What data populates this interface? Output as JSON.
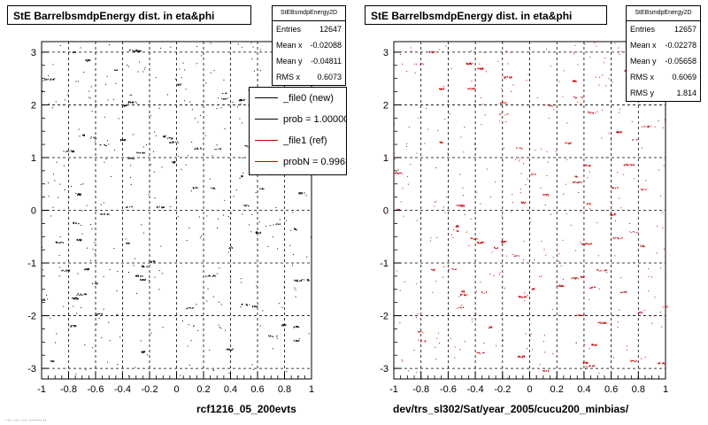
{
  "stamp_text": "... ... ... .........",
  "panels": [
    {
      "title": "StE BarrelbsmdpEnergy dist. in eta&phi",
      "x_caption": "rcf1216_05_200evts",
      "stats": {
        "name": "StEBsmdpEnergy2D",
        "rows": [
          {
            "label": "Entries",
            "value": "12647"
          },
          {
            "label": "Mean x",
            "value": "-0.02088"
          },
          {
            "label": "Mean y",
            "value": "-0.04811"
          },
          {
            "label": "RMS x",
            "value": "0.6073"
          }
        ]
      },
      "legend": [
        {
          "label": "_file0 (new)",
          "color": "#000000"
        },
        {
          "label": "prob = 1.000000",
          "color": "#000000"
        },
        {
          "label": "_file1 (ref)",
          "color": "#cc0000"
        },
        {
          "label": "probN = 0.996371",
          "color": "#cc0000"
        }
      ]
    },
    {
      "title": "StE BarrelbsmdpEnergy dist. in eta&phi",
      "x_caption": "dev/trs_sl302/Sat/year_2005/cucu200_minbias/",
      "stats": {
        "name": "StEBsmdpEnergy2D",
        "rows": [
          {
            "label": "Entries",
            "value": "12657"
          },
          {
            "label": "Mean x",
            "value": "-0.02278"
          },
          {
            "label": "Mean y",
            "value": "-0.05658"
          },
          {
            "label": "RMS x",
            "value": "0.6069"
          },
          {
            "label": "RMS y",
            "value": "1.814"
          }
        ]
      }
    }
  ],
  "chart_data": [
    {
      "type": "scatter",
      "title": "StE BarrelbsmdpEnergy dist. in eta&phi",
      "xlabel": "rcf1216_05_200evts",
      "ylabel": "",
      "xlim": [
        -1,
        1
      ],
      "ylim": [
        -3.2,
        3.2
      ],
      "xticks": [
        -1,
        -0.8,
        -0.6,
        -0.4,
        -0.2,
        0,
        0.2,
        0.4,
        0.6,
        0.8,
        1
      ],
      "yticks": [
        -3,
        -2,
        -1,
        0,
        1,
        2,
        3
      ],
      "grid": true,
      "marker_color": "#000000",
      "seed": 12647
    },
    {
      "type": "scatter",
      "title": "StE BarrelbsmdpEnergy dist. in eta&phi",
      "xlabel": "dev/trs_sl302/Sat/year_2005/cucu200_minbias/",
      "ylabel": "",
      "xlim": [
        -1,
        1
      ],
      "ylim": [
        -3.2,
        3.2
      ],
      "xticks": [
        -1,
        -0.8,
        -0.6,
        -0.4,
        -0.2,
        0,
        0.2,
        0.4,
        0.6,
        0.8,
        1
      ],
      "yticks": [
        -3,
        -2,
        -1,
        0,
        1,
        2,
        3
      ],
      "grid": true,
      "marker_color": "#cc0000",
      "seed": 12657
    }
  ]
}
